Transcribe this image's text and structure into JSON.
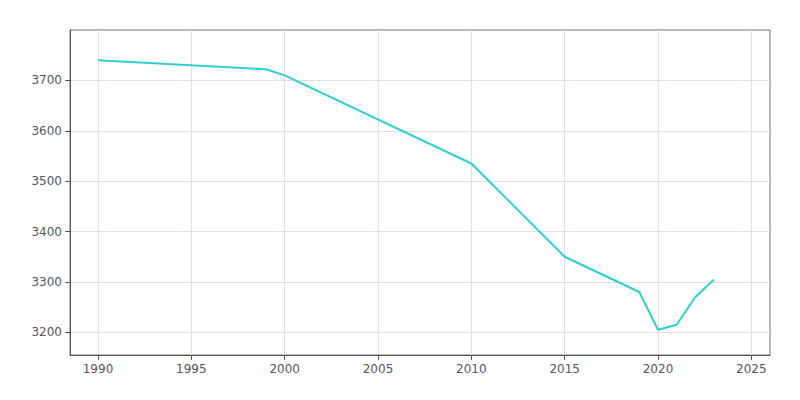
{
  "chart_data": {
    "type": "line",
    "x": [
      1990,
      1999,
      2000,
      2010,
      2015,
      2019,
      2020,
      2021,
      2022,
      2023
    ],
    "values": [
      3740,
      3722,
      3710,
      3535,
      3350,
      3280,
      3205,
      3215,
      3270,
      3305
    ],
    "color": "#2ecfcc",
    "xlim": [
      1988.5,
      2026
    ],
    "ylim": [
      3155,
      3800
    ],
    "xticks": [
      1990,
      1995,
      2000,
      2005,
      2010,
      2015,
      2020,
      2025
    ],
    "yticks": [
      3200,
      3300,
      3400,
      3500,
      3600,
      3700
    ],
    "grid": true
  }
}
